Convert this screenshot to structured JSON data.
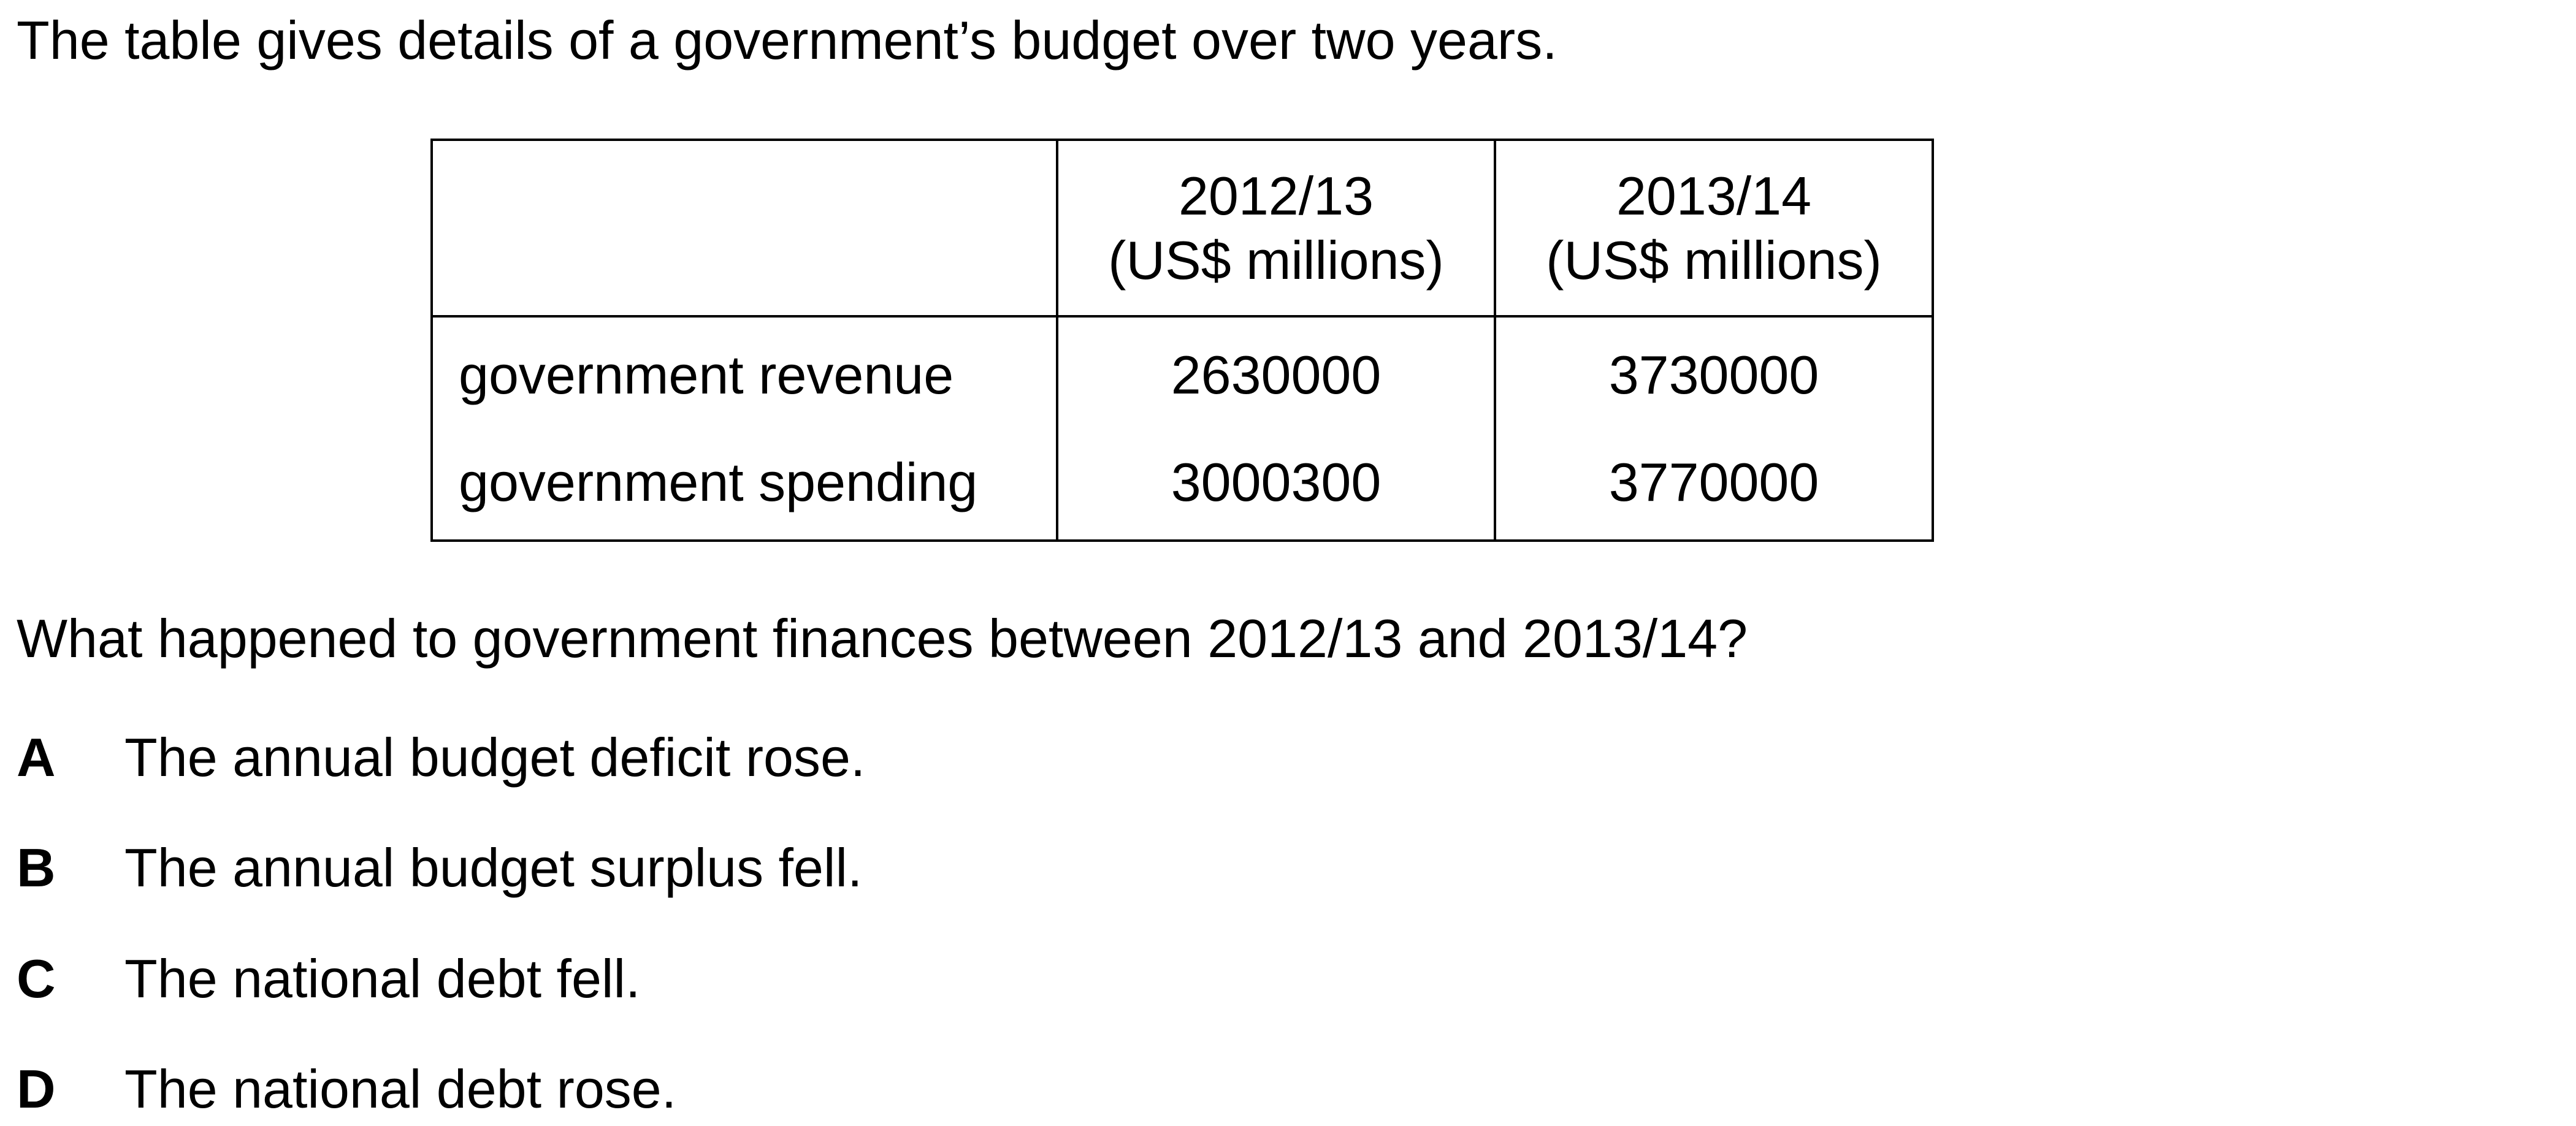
{
  "intro": "The table gives details of a government’s budget over two years.",
  "table": {
    "headers": [
      "",
      {
        "year": "2012/13",
        "unit": "(US$ millions)"
      },
      {
        "year": "2013/14",
        "unit": "(US$ millions)"
      }
    ],
    "rows": [
      {
        "label": "government revenue",
        "values": [
          "2630000",
          "3730000"
        ]
      },
      {
        "label": "government spending",
        "values": [
          "3000300",
          "3770000"
        ]
      }
    ]
  },
  "question": "What happened to government finances between 2012/13 and 2013/14?",
  "options": [
    {
      "letter": "A",
      "text": "The annual budget deficit rose."
    },
    {
      "letter": "B",
      "text": "The annual budget surplus fell."
    },
    {
      "letter": "C",
      "text": "The national debt fell."
    },
    {
      "letter": "D",
      "text": "The national debt rose."
    }
  ]
}
